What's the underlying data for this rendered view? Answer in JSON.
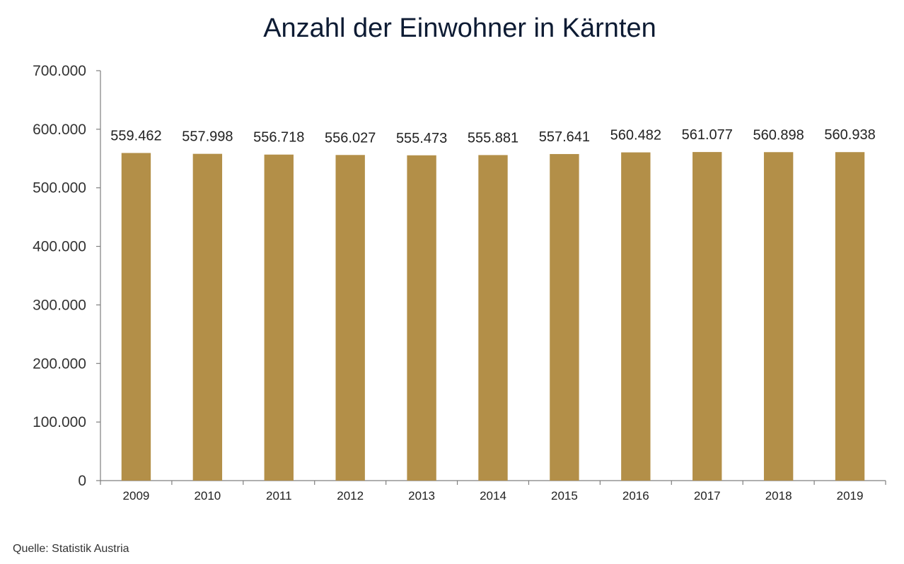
{
  "chart_data": {
    "type": "bar",
    "title": "Anzahl der Einwohner in Kärnten",
    "categories": [
      "2009",
      "2010",
      "2011",
      "2012",
      "2013",
      "2014",
      "2015",
      "2016",
      "2017",
      "2018",
      "2019"
    ],
    "values": [
      559462,
      557998,
      556718,
      556027,
      555473,
      555881,
      557641,
      560482,
      561077,
      560898,
      560938
    ],
    "value_labels": [
      "559.462",
      "557.998",
      "556.718",
      "556.027",
      "555.473",
      "555.881",
      "557.641",
      "560.482",
      "561.077",
      "560.898",
      "560.938"
    ],
    "ylim": [
      0,
      700000
    ],
    "yticks": [
      0,
      100000,
      200000,
      300000,
      400000,
      500000,
      600000,
      700000
    ],
    "ytick_labels": [
      "0",
      "100.000",
      "200.000",
      "300.000",
      "400.000",
      "500.000",
      "600.000",
      "700.000"
    ],
    "xlabel": "",
    "ylabel": "",
    "grid": false,
    "bar_color": "#b38f48",
    "source": "Quelle: Statistik Austria"
  }
}
